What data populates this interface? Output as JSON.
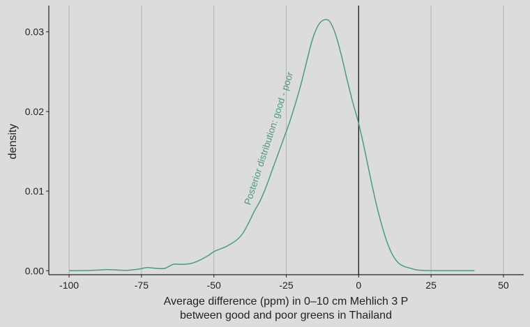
{
  "chart_data": {
    "type": "line",
    "title": "",
    "xlabel_line1": "Average difference (ppm) in 0–10 cm Mehlich 3 P",
    "xlabel_line2": "between good and poor greens in Thailand",
    "ylabel": "density",
    "xlim": [
      -107,
      57
    ],
    "ylim": [
      -0.0005,
      0.0333
    ],
    "x_ticks": [
      -100,
      -75,
      -50,
      -25,
      0,
      25,
      50
    ],
    "x_tick_labels": [
      "-100",
      "-75",
      "-50",
      "-25",
      "0",
      "25",
      "50"
    ],
    "y_ticks": [
      0.0,
      0.01,
      0.02,
      0.03
    ],
    "y_tick_labels": [
      "0.00",
      "0.01",
      "0.02",
      "0.03"
    ],
    "grid": "vertical major lines",
    "reference_line_x": 0,
    "annotation": {
      "text": "Posterior distribution: good - poor",
      "x": -30,
      "y": 0.0165,
      "angle": -72
    },
    "colors": {
      "line": "#4d9a80",
      "grid": "#b3b3b3",
      "background": "#dcdcdc",
      "axis": "#222222"
    },
    "series": [
      {
        "x": [
          -100,
          -95,
          -90,
          -87,
          -84,
          -80,
          -76,
          -73,
          -70,
          -67,
          -64,
          -61,
          -58,
          -55,
          -52,
          -50,
          -48,
          -46,
          -44,
          -42,
          -40,
          -38,
          -36,
          -34,
          -32,
          -30,
          -28,
          -26,
          -24,
          -22,
          -20,
          -18,
          -16,
          -14,
          -12,
          -10,
          -8,
          -6,
          -4,
          -2,
          0,
          2,
          4,
          6,
          8,
          10,
          12,
          14,
          16,
          18,
          20,
          22,
          24,
          26,
          28,
          30,
          35,
          40
        ],
        "y": [
          0.0,
          2e-05,
          8e-05,
          0.00015,
          0.0001,
          5e-05,
          0.0002,
          0.0004,
          0.0003,
          0.0003,
          0.0008,
          0.0008,
          0.0009,
          0.0013,
          0.0019,
          0.0024,
          0.0027,
          0.003,
          0.0034,
          0.0039,
          0.0047,
          0.006,
          0.0075,
          0.0088,
          0.0105,
          0.0125,
          0.0145,
          0.0165,
          0.0185,
          0.0208,
          0.0233,
          0.0262,
          0.029,
          0.0308,
          0.0315,
          0.0313,
          0.0297,
          0.0271,
          0.024,
          0.0211,
          0.0185,
          0.0153,
          0.0118,
          0.0085,
          0.0057,
          0.0034,
          0.0018,
          0.0009,
          0.0005,
          0.0003,
          0.0001,
          5e-05,
          2e-05,
          1e-05,
          0.0,
          0.0,
          0.0,
          0.0
        ]
      }
    ]
  }
}
